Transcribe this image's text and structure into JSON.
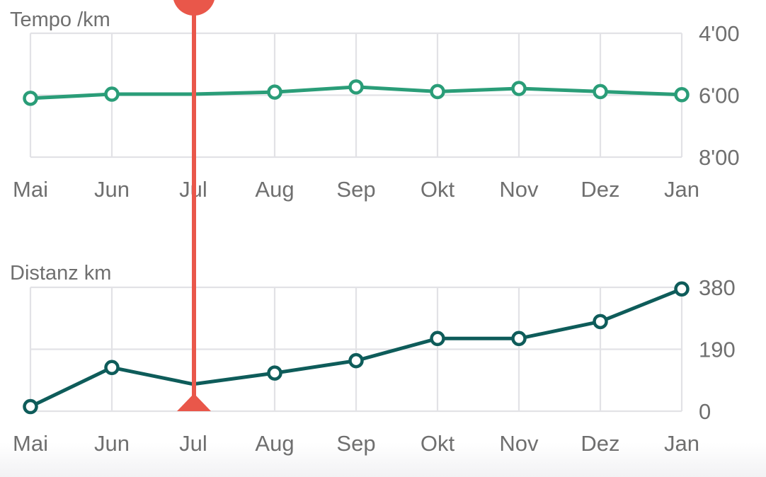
{
  "colors": {
    "pace": "#2a9d78",
    "distance": "#0e5c5a",
    "cursor": "#e9574a",
    "grid": "#e2e2e6",
    "text": "#6f6f6f"
  },
  "cursor": {
    "category": "Jul",
    "selected_index": 2
  },
  "chart_data": [
    {
      "type": "line",
      "title": "Tempo /km",
      "categories": [
        "Mai",
        "Jun",
        "Jul",
        "Aug",
        "Sep",
        "Okt",
        "Nov",
        "Dez",
        "Jan"
      ],
      "series": [
        {
          "values_seconds": [
            366,
            358,
            358,
            354,
            344,
            353,
            347,
            353,
            359
          ]
        }
      ],
      "y_tick_labels": [
        "4'00",
        "6'00",
        "8'00"
      ],
      "y_tick_values_seconds": [
        240,
        360,
        480
      ],
      "ylim_seconds": [
        240,
        480
      ],
      "y_inverted": true,
      "grid": true
    },
    {
      "type": "line",
      "title": "Distanz km",
      "categories": [
        "Mai",
        "Jun",
        "Jul",
        "Aug",
        "Sep",
        "Okt",
        "Nov",
        "Dez",
        "Jan"
      ],
      "series": [
        {
          "values": [
            14,
            134,
            83,
            117,
            155,
            223,
            223,
            275,
            375
          ]
        }
      ],
      "y_tick_labels": [
        "380",
        "190",
        "0"
      ],
      "y_tick_values": [
        380,
        190,
        0
      ],
      "ylim": [
        0,
        380
      ],
      "grid": true
    }
  ]
}
